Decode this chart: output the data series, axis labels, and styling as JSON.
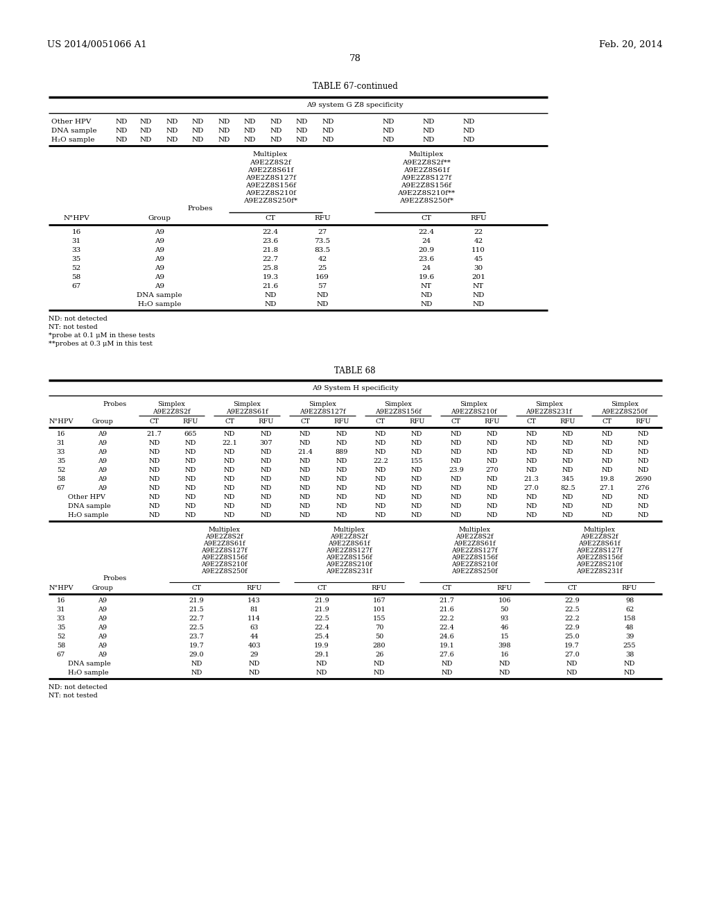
{
  "patent_left": "US 2014/0051066 A1",
  "patent_right": "Feb. 20, 2014",
  "page_number": "78",
  "t67_title": "TABLE 67-continued",
  "t67_subtitle": "A9 system G Z8 specificity",
  "t67_top_rows": [
    [
      "Other HPV",
      "ND",
      "ND",
      "ND",
      "ND",
      "ND",
      "ND",
      "ND",
      "ND",
      "ND",
      "ND",
      "ND",
      "ND"
    ],
    [
      "DNA sample",
      "ND",
      "ND",
      "ND",
      "ND",
      "ND",
      "ND",
      "ND",
      "ND",
      "ND",
      "ND",
      "ND",
      "ND"
    ],
    [
      "H₂O sample",
      "ND",
      "ND",
      "ND",
      "ND",
      "ND",
      "ND",
      "ND",
      "ND",
      "ND",
      "ND",
      "ND",
      "ND"
    ]
  ],
  "t67_mx1": [
    "Multiplex",
    "A9E2Z8S2f",
    "A9E2Z8S61f",
    "A9E2Z8S127f",
    "A9E2Z8S156f",
    "A9E2Z8S210f",
    "A9E2Z8S250f*"
  ],
  "t67_mx2": [
    "Multiplex",
    "A9E2Z8S2f**",
    "A9E2Z8S61f",
    "A9E2Z8S127f",
    "A9E2Z8S156f",
    "A9E2Z8S210f**",
    "A9E2Z8S250f*"
  ],
  "t67_data": [
    [
      "16",
      "A9",
      "22.4",
      "27",
      "22.4",
      "22"
    ],
    [
      "31",
      "A9",
      "23.6",
      "73.5",
      "24",
      "42"
    ],
    [
      "33",
      "A9",
      "21.8",
      "83.5",
      "20.9",
      "110"
    ],
    [
      "35",
      "A9",
      "22.7",
      "42",
      "23.6",
      "45"
    ],
    [
      "52",
      "A9",
      "25.8",
      "25",
      "24",
      "30"
    ],
    [
      "58",
      "A9",
      "19.3",
      "169",
      "19.6",
      "201"
    ],
    [
      "67",
      "A9",
      "21.6",
      "57",
      "NT",
      "NT"
    ],
    [
      "DNA sample",
      "",
      "ND",
      "ND",
      "ND",
      "ND"
    ],
    [
      "H₂O sample",
      "",
      "ND",
      "ND",
      "ND",
      "ND"
    ]
  ],
  "t67_footnotes": [
    "ND: not detected",
    "NT: not tested",
    "*probe at 0.1 μM in these tests",
    "**probes at 0.3 μM in this test"
  ],
  "t68_title": "TABLE 68",
  "t68_subtitle": "A9 System H specificity",
  "t68_simplex_names": [
    "A9E2Z8S2f",
    "A9E2Z8S61f",
    "A9E2Z8S127f",
    "A9E2Z8S156f",
    "A9E2Z8S210f",
    "A9E2Z8S231f",
    "A9E2Z8S250f"
  ],
  "t68_simplex_data": [
    [
      "16",
      "A9",
      "21.7",
      "665",
      "ND",
      "ND",
      "ND",
      "ND",
      "ND",
      "ND",
      "ND",
      "ND",
      "ND",
      "ND",
      "ND",
      "ND"
    ],
    [
      "31",
      "A9",
      "ND",
      "ND",
      "22.1",
      "307",
      "ND",
      "ND",
      "ND",
      "ND",
      "ND",
      "ND",
      "ND",
      "ND",
      "ND",
      "ND"
    ],
    [
      "33",
      "A9",
      "ND",
      "ND",
      "ND",
      "ND",
      "21.4",
      "889",
      "ND",
      "ND",
      "ND",
      "ND",
      "ND",
      "ND",
      "ND",
      "ND"
    ],
    [
      "35",
      "A9",
      "ND",
      "ND",
      "ND",
      "ND",
      "ND",
      "ND",
      "22.2",
      "155",
      "ND",
      "ND",
      "ND",
      "ND",
      "ND",
      "ND"
    ],
    [
      "52",
      "A9",
      "ND",
      "ND",
      "ND",
      "ND",
      "ND",
      "ND",
      "ND",
      "ND",
      "23.9",
      "270",
      "ND",
      "ND",
      "ND",
      "ND"
    ],
    [
      "58",
      "A9",
      "ND",
      "ND",
      "ND",
      "ND",
      "ND",
      "ND",
      "ND",
      "ND",
      "ND",
      "ND",
      "21.3",
      "345",
      "19.8",
      "2690"
    ],
    [
      "67",
      "A9",
      "ND",
      "ND",
      "ND",
      "ND",
      "ND",
      "ND",
      "ND",
      "ND",
      "ND",
      "ND",
      "27.0",
      "82.5",
      "27.1",
      "276"
    ],
    [
      "Other HPV",
      "",
      "ND",
      "ND",
      "ND",
      "ND",
      "ND",
      "ND",
      "ND",
      "ND",
      "ND",
      "ND",
      "ND",
      "ND",
      "ND",
      "ND"
    ],
    [
      "DNA sample",
      "",
      "ND",
      "ND",
      "ND",
      "ND",
      "ND",
      "ND",
      "ND",
      "ND",
      "ND",
      "ND",
      "ND",
      "ND",
      "ND",
      "ND"
    ],
    [
      "H₂O sample",
      "",
      "ND",
      "ND",
      "ND",
      "ND",
      "ND",
      "ND",
      "ND",
      "ND",
      "ND",
      "ND",
      "ND",
      "ND",
      "ND",
      "ND"
    ]
  ],
  "t68_mx_headers": [
    [
      "Multiplex",
      "A9E2Z8S2f",
      "A9E2Z8S61f",
      "A9E2Z8S127f",
      "A9E2Z8S156f",
      "A9E2Z8S210f",
      "A9E2Z8S250f"
    ],
    [
      "Multiplex",
      "A9E2Z8S2f",
      "A9E2Z8S61f",
      "A9E2Z8S127f",
      "A9E2Z8S156f",
      "A9E2Z8S210f",
      "A9E2Z8S231f"
    ],
    [
      "Multiplex",
      "A9E2Z8S2f",
      "A9E2Z8S61f",
      "A9E2Z8S127f",
      "A9E2Z8S156f",
      "A9E2Z8S210f",
      "A9E2Z8S250f"
    ],
    [
      "Multiplex",
      "A9E2Z8S2f",
      "A9E2Z8S61f",
      "A9E2Z8S127f",
      "A9E2Z8S156f",
      "A9E2Z8S210f",
      "A9E2Z8S231f"
    ]
  ],
  "t68_mx_data": [
    [
      "16",
      "A9",
      "21.9",
      "143",
      "21.9",
      "167",
      "21.7",
      "106",
      "22.9",
      "98"
    ],
    [
      "31",
      "A9",
      "21.5",
      "81",
      "21.9",
      "101",
      "21.6",
      "50",
      "22.5",
      "62"
    ],
    [
      "33",
      "A9",
      "22.7",
      "114",
      "22.5",
      "155",
      "22.2",
      "93",
      "22.2",
      "158"
    ],
    [
      "35",
      "A9",
      "22.5",
      "63",
      "22.4",
      "70",
      "22.4",
      "46",
      "22.9",
      "48"
    ],
    [
      "52",
      "A9",
      "23.7",
      "44",
      "25.4",
      "50",
      "24.6",
      "15",
      "25.0",
      "39"
    ],
    [
      "58",
      "A9",
      "19.7",
      "403",
      "19.9",
      "280",
      "19.1",
      "398",
      "19.7",
      "255"
    ],
    [
      "67",
      "A9",
      "29.0",
      "29",
      "29.1",
      "26",
      "27.6",
      "16",
      "27.0",
      "38"
    ],
    [
      "DNA sample",
      "",
      "ND",
      "ND",
      "ND",
      "ND",
      "ND",
      "ND",
      "ND",
      "ND"
    ],
    [
      "H₂O sample",
      "",
      "ND",
      "ND",
      "ND",
      "ND",
      "ND",
      "ND",
      "ND",
      "ND"
    ]
  ],
  "t68_footnotes": [
    "ND: not detected",
    "NT: not tested"
  ]
}
